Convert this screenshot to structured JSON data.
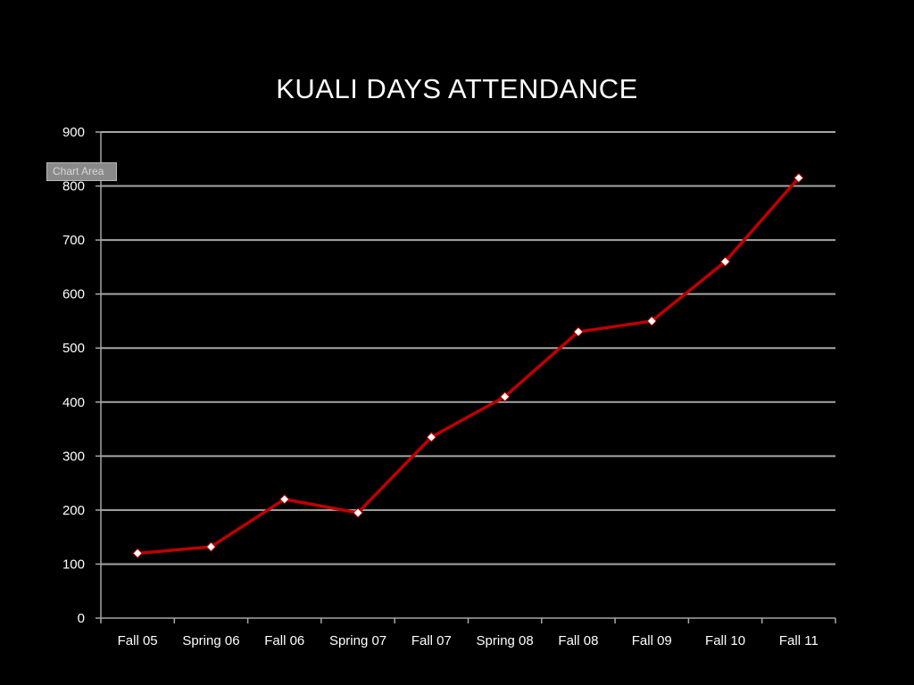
{
  "slide": {
    "title": "KUALI DAYS ATTENDANCE",
    "tooltip": "Chart Area"
  },
  "colors": {
    "background": "#000000",
    "line": "#c00000",
    "marker": "#ffffff",
    "gridline": "#a6a6a6",
    "text": "#ffffff"
  },
  "chart_data": {
    "type": "line",
    "title": "",
    "xlabel": "",
    "ylabel": "",
    "categories": [
      "Fall 05",
      "Spring 06",
      "Fall 06",
      "Spring 07",
      "Fall 07",
      "Spring 08",
      "Fall 08",
      "Fall 09",
      "Fall 10",
      "Fall 11"
    ],
    "series": [
      {
        "values": [
          120,
          132,
          220,
          195,
          335,
          410,
          530,
          550,
          660,
          815
        ]
      }
    ],
    "ylim": [
      0,
      900
    ],
    "yticks": [
      0,
      100,
      200,
      300,
      400,
      500,
      600,
      700,
      800,
      900
    ],
    "grid": true,
    "legend": "none",
    "marker": "diamond"
  }
}
